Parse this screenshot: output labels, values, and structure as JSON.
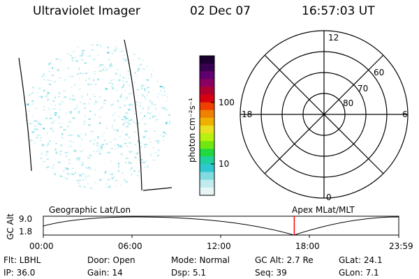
{
  "header": {
    "title": "Ultraviolet Imager",
    "date": "02 Dec 07",
    "time": "16:57:03 UT"
  },
  "colorbar": {
    "label": "photon cm⁻²s⁻¹",
    "ticks": [
      "100",
      "10"
    ],
    "colors": [
      "#1a0030",
      "#3a0050",
      "#600070",
      "#8a0060",
      "#b00030",
      "#d80010",
      "#f04000",
      "#f08000",
      "#f0b000",
      "#e8e020",
      "#b8f010",
      "#70e810",
      "#20d840",
      "#20d0a0",
      "#30c8d0",
      "#80dce0",
      "#c0ecf0",
      "#e8f6f8"
    ]
  },
  "polar": {
    "mlt_labels": {
      "top": "12",
      "left": "18",
      "right": "6",
      "bottom": "0"
    },
    "lat_labels": [
      "60",
      "70",
      "80"
    ]
  },
  "timeline": {
    "ylabel": "GC Alt",
    "ytick_top": "9.0",
    "ytick_bottom": "1.8",
    "left_caption": "Geographic Lat/Lon",
    "right_caption": "Apex  MLat/MLT",
    "xticks": [
      "00:00",
      "06:00",
      "12:00",
      "18:00",
      "23:59"
    ],
    "current_time_fraction": 0.706
  },
  "info": {
    "flt": "Flt: LBHL",
    "ip": "IP: 36.0",
    "door": "Door: Open",
    "gain": "Gain: 14",
    "mode": "Mode: Normal",
    "dsp": "Dsp:     5.1",
    "gcalt": "GC Alt: 2.7 Re",
    "seq": "Seq: 39",
    "glat": "GLat:  24.1",
    "glon": "GLon:    7.1"
  },
  "colors": {
    "speckle": "#8fe0e8",
    "speckle_dark": "#40c8d8",
    "marker": "#ff0000"
  }
}
